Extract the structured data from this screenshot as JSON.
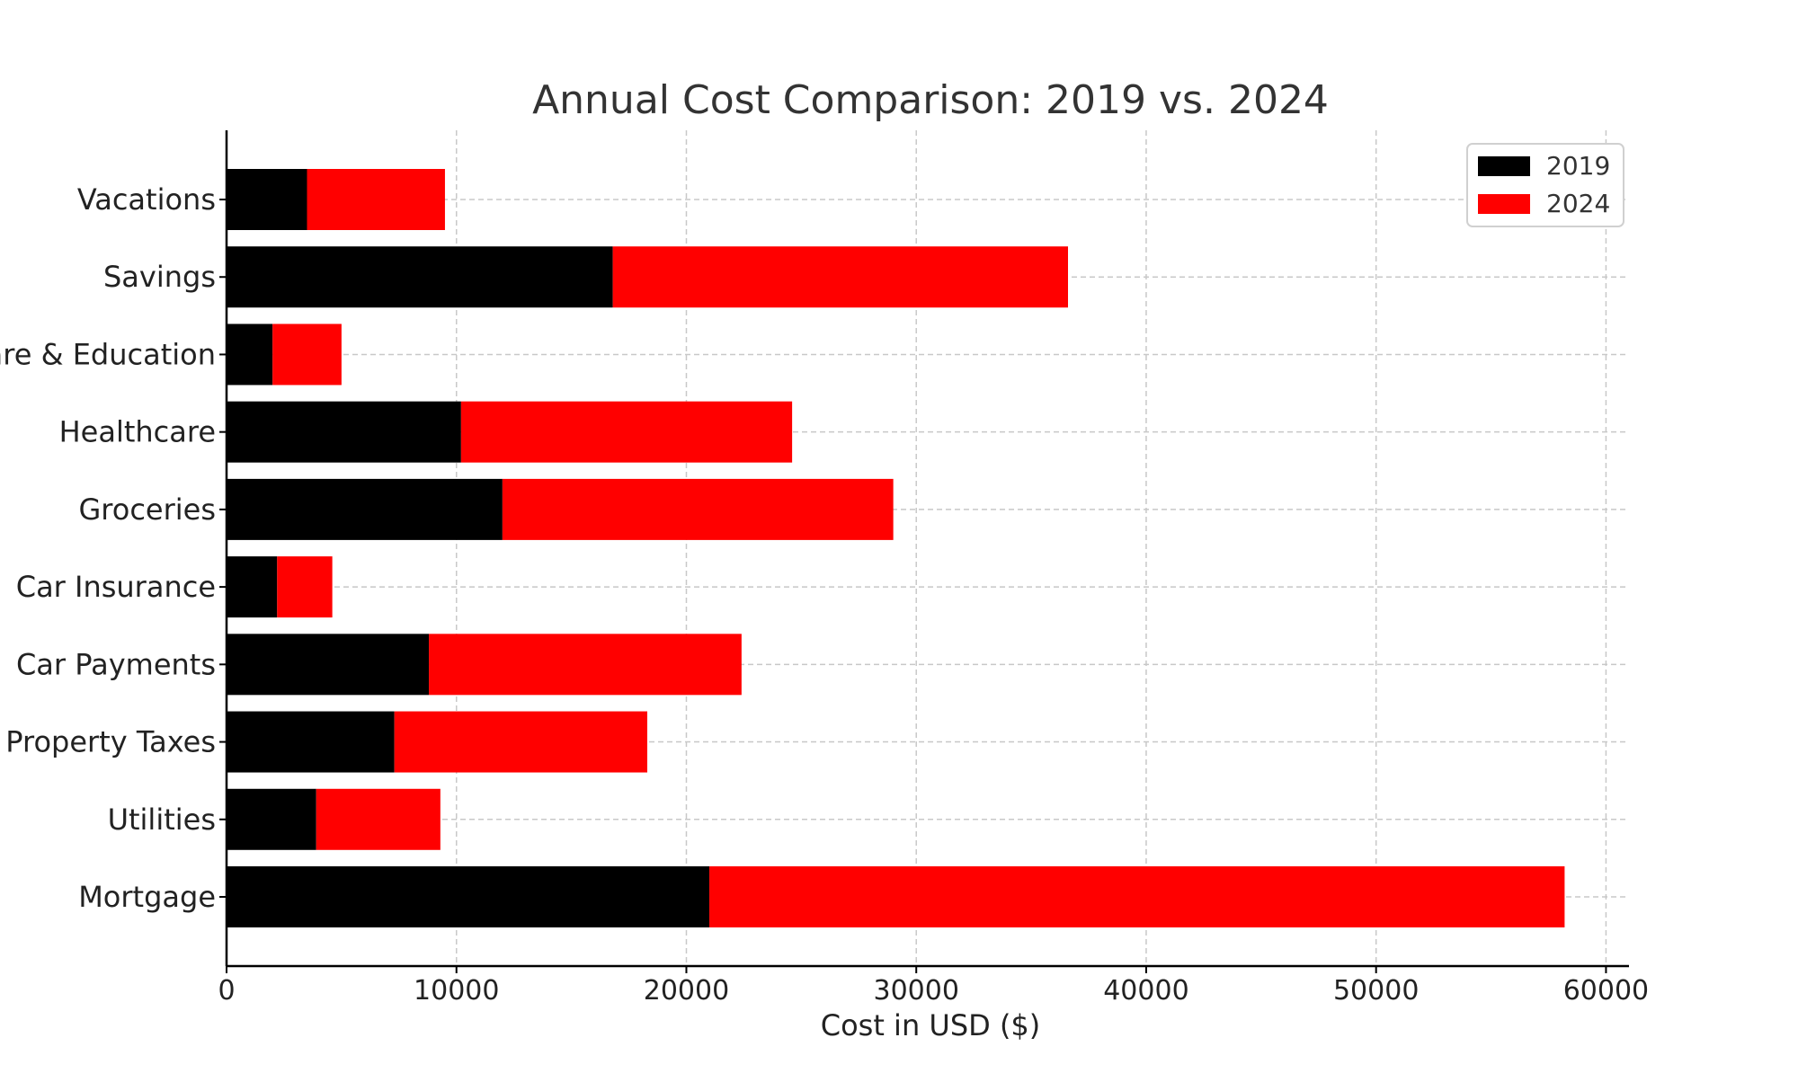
{
  "chart_data": {
    "type": "bar",
    "orientation": "horizontal",
    "stacked": true,
    "title": "Annual Cost Comparison: 2019 vs. 2024",
    "xlabel": "Cost in USD ($)",
    "ylabel": "",
    "xlim": [
      0,
      61000
    ],
    "xticks": [
      0,
      10000,
      20000,
      30000,
      40000,
      50000,
      60000
    ],
    "xtick_labels": [
      "0",
      "10000",
      "20000",
      "30000",
      "40000",
      "50000",
      "60000"
    ],
    "grid": true,
    "legend_position": "top-right",
    "categories": [
      "Mortgage",
      "Utilities",
      "Property Taxes",
      "Car Payments",
      "Car Insurance",
      "Groceries",
      "Healthcare",
      "Childcare & Education",
      "Savings",
      "Vacations"
    ],
    "series": [
      {
        "name": "2019",
        "color": "#000000",
        "values": [
          21000,
          3900,
          7300,
          8800,
          2200,
          12000,
          10200,
          2000,
          16800,
          3500
        ]
      },
      {
        "name": "2024",
        "color": "#ff0000",
        "values": [
          37200,
          5400,
          11000,
          13600,
          2400,
          17000,
          14400,
          3000,
          19800,
          6000
        ]
      }
    ]
  }
}
